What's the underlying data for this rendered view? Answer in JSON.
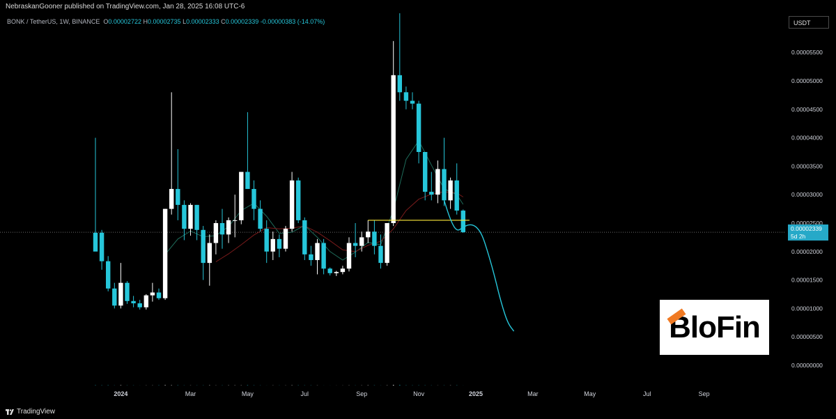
{
  "header": {
    "publisher_line": "NebraskanGooner published on TradingView.com, Jan 28, 2025 16:08 UTC-6"
  },
  "legend": {
    "symbol": "BONK / TetherUS, 1W, BINANCE",
    "o_label": "O",
    "o": "0.00002722",
    "h_label": "H",
    "h": "0.00002735",
    "l_label": "L",
    "l": "0.00002333",
    "c_label": "C",
    "c": "0.00002339",
    "change": "-0.00000383 (-14.07%)"
  },
  "currency_button": "USDT",
  "last_price": {
    "value": "0.00002339",
    "countdown": "5d 2h"
  },
  "logo": {
    "brand": "BloFin"
  },
  "footer": {
    "brand": "TradingView"
  },
  "colors": {
    "up": "#ffffff",
    "down": "#26c6da",
    "volume_up": "#ffffff",
    "volume_down": "#26c6da",
    "ma_fast": "#1e6b5a",
    "ma_slow": "#7a1b1b",
    "projection": "#26c6da",
    "level": "#ffeb3b"
  },
  "chart_data": {
    "type": "candlestick",
    "y_axis_labels": [
      "0.00005500",
      "0.00005000",
      "0.00004500",
      "0.00004000",
      "0.00003500",
      "0.00003000",
      "0.00002500",
      "0.00002000",
      "0.00001500",
      "0.00001000",
      "0.00000500",
      "0.00000000"
    ],
    "ylim": [
      0,
      5.85e-05
    ],
    "x_axis_labels": [
      "2024",
      "Mar",
      "May",
      "Jul",
      "Sep",
      "Nov",
      "2025",
      "Mar",
      "May",
      "Jul",
      "Sep"
    ],
    "x_label_weeks": [
      4,
      15,
      24,
      33,
      42,
      51,
      60,
      69,
      78,
      87,
      96
    ],
    "candles": [
      {
        "week": 0,
        "o": 2.33e-05,
        "h": 4e-05,
        "l": 2.04e-05,
        "c": 2e-05
      },
      {
        "week": 1,
        "o": 2.33e-05,
        "h": 2.38e-05,
        "l": 1.68e-05,
        "c": 1.83e-05
      },
      {
        "week": 2,
        "o": 1.83e-05,
        "h": 1.92e-05,
        "l": 1.3e-05,
        "c": 1.35e-05
      },
      {
        "week": 3,
        "o": 1.35e-05,
        "h": 1.45e-05,
        "l": 1e-05,
        "c": 1.05e-05
      },
      {
        "week": 4,
        "o": 1.05e-05,
        "h": 1.8e-05,
        "l": 1e-05,
        "c": 1.45e-05
      },
      {
        "week": 5,
        "o": 1.45e-05,
        "h": 1.48e-05,
        "l": 1.08e-05,
        "c": 1.13e-05
      },
      {
        "week": 6,
        "o": 1.13e-05,
        "h": 1.22e-05,
        "l": 1.02e-05,
        "c": 1.09e-05
      },
      {
        "week": 7,
        "o": 1.09e-05,
        "h": 1.15e-05,
        "l": 9.8e-06,
        "c": 1.02e-05
      },
      {
        "week": 8,
        "o": 1.02e-05,
        "h": 1.25e-05,
        "l": 9.8e-06,
        "c": 1.23e-05
      },
      {
        "week": 9,
        "o": 1.23e-05,
        "h": 1.45e-05,
        "l": 1.12e-05,
        "c": 1.28e-05
      },
      {
        "week": 10,
        "o": 1.28e-05,
        "h": 1.35e-05,
        "l": 1.15e-05,
        "c": 1.18e-05
      },
      {
        "week": 11,
        "o": 1.18e-05,
        "h": 2.75e-05,
        "l": 1.15e-05,
        "c": 2.75e-05
      },
      {
        "week": 12,
        "o": 2.75e-05,
        "h": 4.8e-05,
        "l": 2.65e-05,
        "c": 3.1e-05
      },
      {
        "week": 13,
        "o": 3.1e-05,
        "h": 3.8e-05,
        "l": 2.55e-05,
        "c": 2.82e-05
      },
      {
        "week": 14,
        "o": 2.82e-05,
        "h": 2.9e-05,
        "l": 2.2e-05,
        "c": 2.4e-05
      },
      {
        "week": 15,
        "o": 2.4e-05,
        "h": 2.85e-05,
        "l": 2.28e-05,
        "c": 2.82e-05
      },
      {
        "week": 16,
        "o": 2.82e-05,
        "h": 2.82e-05,
        "l": 2.2e-05,
        "c": 2.38e-05
      },
      {
        "week": 17,
        "o": 2.38e-05,
        "h": 2.45e-05,
        "l": 1.5e-05,
        "c": 1.8e-05
      },
      {
        "week": 18,
        "o": 1.8e-05,
        "h": 2.3e-05,
        "l": 1.4e-05,
        "c": 2.15e-05
      },
      {
        "week": 19,
        "o": 2.15e-05,
        "h": 2.55e-05,
        "l": 1.95e-05,
        "c": 2.5e-05
      },
      {
        "week": 20,
        "o": 2.5e-05,
        "h": 2.75e-05,
        "l": 2.05e-05,
        "c": 2.3e-05
      },
      {
        "week": 21,
        "o": 2.3e-05,
        "h": 2.6e-05,
        "l": 2.15e-05,
        "c": 2.55e-05
      },
      {
        "week": 22,
        "o": 2.55e-05,
        "h": 3e-05,
        "l": 2.25e-05,
        "c": 2.55e-05
      },
      {
        "week": 23,
        "o": 2.55e-05,
        "h": 3.35e-05,
        "l": 2.48e-05,
        "c": 3.4e-05
      },
      {
        "week": 24,
        "o": 3.4e-05,
        "h": 4.45e-05,
        "l": 3.1e-05,
        "c": 3.1e-05
      },
      {
        "week": 25,
        "o": 3.1e-05,
        "h": 3.25e-05,
        "l": 2.55e-05,
        "c": 2.75e-05
      },
      {
        "week": 26,
        "o": 2.75e-05,
        "h": 2.9e-05,
        "l": 2.35e-05,
        "c": 2.4e-05
      },
      {
        "week": 27,
        "o": 2.4e-05,
        "h": 2.55e-05,
        "l": 1.8e-05,
        "c": 2e-05
      },
      {
        "week": 28,
        "o": 2e-05,
        "h": 2.35e-05,
        "l": 1.85e-05,
        "c": 2.22e-05
      },
      {
        "week": 29,
        "o": 2.22e-05,
        "h": 2.3e-05,
        "l": 1.9e-05,
        "c": 2.05e-05
      },
      {
        "week": 30,
        "o": 2.05e-05,
        "h": 2.45e-05,
        "l": 2e-05,
        "c": 2.4e-05
      },
      {
        "week": 31,
        "o": 2.4e-05,
        "h": 3.4e-05,
        "l": 2.35e-05,
        "c": 3.25e-05
      },
      {
        "week": 32,
        "o": 3.25e-05,
        "h": 3.3e-05,
        "l": 2.5e-05,
        "c": 2.55e-05
      },
      {
        "week": 33,
        "o": 2.55e-05,
        "h": 2.6e-05,
        "l": 1.85e-05,
        "c": 1.95e-05
      },
      {
        "week": 34,
        "o": 1.95e-05,
        "h": 2.1e-05,
        "l": 1.75e-05,
        "c": 1.85e-05
      },
      {
        "week": 35,
        "o": 1.85e-05,
        "h": 2.22e-05,
        "l": 1.6e-05,
        "c": 2.15e-05
      },
      {
        "week": 36,
        "o": 2.15e-05,
        "h": 2.22e-05,
        "l": 1.6e-05,
        "c": 1.7e-05
      },
      {
        "week": 37,
        "o": 1.7e-05,
        "h": 1.72e-05,
        "l": 1.58e-05,
        "c": 1.62e-05
      },
      {
        "week": 38,
        "o": 1.62e-05,
        "h": 1.66e-05,
        "l": 1.57e-05,
        "c": 1.64e-05
      },
      {
        "week": 39,
        "o": 1.64e-05,
        "h": 1.75e-05,
        "l": 1.6e-05,
        "c": 1.7e-05
      },
      {
        "week": 40,
        "o": 1.7e-05,
        "h": 2.25e-05,
        "l": 1.65e-05,
        "c": 2.15e-05
      },
      {
        "week": 41,
        "o": 2.15e-05,
        "h": 2.5e-05,
        "l": 1.9e-05,
        "c": 2.1e-05
      },
      {
        "week": 42,
        "o": 2.1e-05,
        "h": 2.35e-05,
        "l": 2e-05,
        "c": 2.25e-05
      },
      {
        "week": 43,
        "o": 2.25e-05,
        "h": 2.55e-05,
        "l": 2.15e-05,
        "c": 2.35e-05
      },
      {
        "week": 44,
        "o": 2.35e-05,
        "h": 2.55e-05,
        "l": 1.95e-05,
        "c": 2.1e-05
      },
      {
        "week": 45,
        "o": 2.1e-05,
        "h": 2.3e-05,
        "l": 1.7e-05,
        "c": 1.8e-05
      },
      {
        "week": 46,
        "o": 1.8e-05,
        "h": 2.5e-05,
        "l": 1.75e-05,
        "c": 2.5e-05
      },
      {
        "week": 47,
        "o": 2.5e-05,
        "h": 5.7e-05,
        "l": 2.45e-05,
        "c": 5.1e-05
      },
      {
        "week": 48,
        "o": 5.1e-05,
        "h": 6.2e-05,
        "l": 4.65e-05,
        "c": 4.8e-05
      },
      {
        "week": 49,
        "o": 4.8e-05,
        "h": 4.9e-05,
        "l": 4.5e-05,
        "c": 4.65e-05
      },
      {
        "week": 50,
        "o": 4.65e-05,
        "h": 4.8e-05,
        "l": 4.5e-05,
        "c": 4.6e-05
      },
      {
        "week": 51,
        "o": 4.6e-05,
        "h": 4.65e-05,
        "l": 3.55e-05,
        "c": 3.75e-05
      },
      {
        "week": 52,
        "o": 3.75e-05,
        "h": 3.75e-05,
        "l": 2.9e-05,
        "c": 3.05e-05
      },
      {
        "week": 53,
        "o": 3.05e-05,
        "h": 3.4e-05,
        "l": 2.9e-05,
        "c": 3e-05
      },
      {
        "week": 54,
        "o": 3e-05,
        "h": 3.6e-05,
        "l": 2.85e-05,
        "c": 3.45e-05
      },
      {
        "week": 55,
        "o": 3.45e-05,
        "h": 4e-05,
        "l": 2.8e-05,
        "c": 2.9e-05
      },
      {
        "week": 56,
        "o": 2.9e-05,
        "h": 3.3e-05,
        "l": 2.75e-05,
        "c": 3.25e-05
      },
      {
        "week": 57,
        "o": 3.25e-05,
        "h": 3.55e-05,
        "l": 2.65e-05,
        "c": 2.72e-05
      },
      {
        "week": 58,
        "o": 2.72e-05,
        "h": 2.74e-05,
        "l": 2.33e-05,
        "c": 2.34e-05
      }
    ],
    "volume": [
      5e-08,
      4e-08,
      5e-08,
      2.5e-08,
      6.5e-08,
      3e-08,
      2.8e-08,
      1e-08,
      2.5e-08,
      2.8e-08,
      4e-08,
      8e-08,
      6e-08,
      4.8e-08,
      2.8e-08,
      3e-08,
      2.8e-08,
      3e-08,
      5.5e-08,
      2.8e-08,
      3e-08,
      4e-08,
      4e-08,
      3.8e-08,
      6.4e-08,
      3.8e-08,
      2.8e-08,
      1e-08,
      2.8e-08,
      2.2e-08,
      2.4e-08,
      4.9e-08,
      4e-08,
      3.2e-08,
      3.2e-08,
      2.8e-08,
      1e-08,
      8e-09,
      1e-08,
      1.8e-08,
      3.2e-08,
      2.2e-08,
      3e-08,
      5.2e-08,
      3.8e-08,
      1.8e-08,
      4.2e-08,
      1.2e-07,
      9e-08,
      4e-08,
      3.2e-08,
      3.8e-08,
      3.4e-08,
      2.6e-08,
      2e-08,
      3e-08,
      3.8e-08,
      4.2e-08,
      8e-09
    ],
    "ma_fast": [
      [
        11,
        1.95e-05
      ],
      [
        13,
        2.22e-05
      ],
      [
        15,
        2.36e-05
      ],
      [
        17,
        2.26e-05
      ],
      [
        19,
        2.28e-05
      ],
      [
        21,
        2.44e-05
      ],
      [
        23,
        2.72e-05
      ],
      [
        25,
        2.85e-05
      ],
      [
        27,
        2.62e-05
      ],
      [
        29,
        2.32e-05
      ],
      [
        31,
        2.34e-05
      ],
      [
        33,
        2.46e-05
      ],
      [
        35,
        2.25e-05
      ],
      [
        37,
        2e-05
      ],
      [
        39,
        1.85e-05
      ],
      [
        41,
        1.99e-05
      ],
      [
        43,
        2.16e-05
      ],
      [
        45,
        2.12e-05
      ],
      [
        47,
        2.73e-05
      ],
      [
        49,
        3.62e-05
      ],
      [
        51,
        3.95e-05
      ],
      [
        53,
        3.52e-05
      ],
      [
        55,
        3.1e-05
      ],
      [
        57,
        3e-05
      ],
      [
        58,
        2.83e-05
      ]
    ],
    "ma_slow": [
      [
        19,
        1.82e-05
      ],
      [
        21,
        1.96e-05
      ],
      [
        23,
        2.12e-05
      ],
      [
        25,
        2.29e-05
      ],
      [
        27,
        2.42e-05
      ],
      [
        29,
        2.4e-05
      ],
      [
        31,
        2.41e-05
      ],
      [
        33,
        2.45e-05
      ],
      [
        35,
        2.34e-05
      ],
      [
        37,
        2.19e-05
      ],
      [
        39,
        2.03e-05
      ],
      [
        41,
        2e-05
      ],
      [
        43,
        2.11e-05
      ],
      [
        45,
        2.18e-05
      ],
      [
        47,
        2.4e-05
      ],
      [
        49,
        2.72e-05
      ],
      [
        51,
        2.92e-05
      ],
      [
        53,
        3.01e-05
      ],
      [
        55,
        3.05e-05
      ],
      [
        57,
        3.03e-05
      ],
      [
        58,
        2.96e-05
      ]
    ],
    "horizontal_level": {
      "price": 2.55e-05,
      "from_week": 43,
      "to_week": 59
    },
    "projection": [
      [
        55,
        2.9e-05
      ],
      [
        56,
        2.55e-05
      ],
      [
        57,
        2.35e-05
      ],
      [
        58,
        2.43e-05
      ],
      [
        59,
        2.48e-05
      ],
      [
        60,
        2.45e-05
      ],
      [
        61,
        2.3e-05
      ],
      [
        62,
        1.95e-05
      ],
      [
        63,
        1.55e-05
      ],
      [
        64,
        1.1e-05
      ],
      [
        65,
        7.5e-06
      ],
      [
        66,
        6e-06
      ]
    ],
    "last_close": 2.339e-05
  }
}
